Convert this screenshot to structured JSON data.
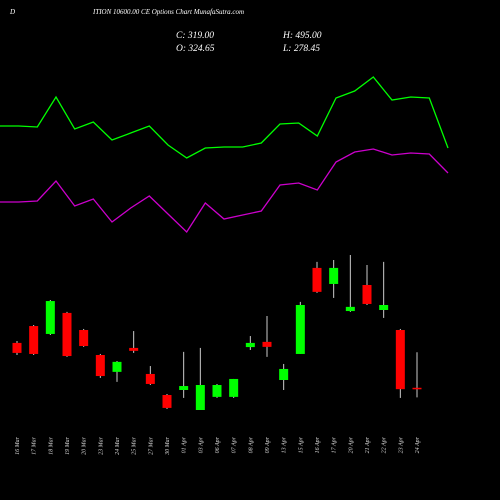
{
  "chart_data": [
    {
      "type": "line",
      "ylim": [
        0,
        190
      ],
      "series": [
        {
          "color": "#00ff00",
          "values": [
            124,
            124,
            123,
            153,
            121,
            128,
            110,
            117,
            124,
            105,
            92,
            102,
            103,
            103,
            107,
            126,
            127,
            114,
            152,
            159,
            173,
            150,
            153,
            152,
            102
          ]
        },
        {
          "color": "#cc00cc",
          "values": [
            48,
            48,
            49,
            69,
            44,
            51,
            28,
            42,
            54,
            36,
            18,
            47,
            31,
            35,
            39,
            65,
            67,
            60,
            88,
            98,
            101,
            95,
            97,
            96,
            77
          ]
        }
      ]
    },
    {
      "type": "candlestick",
      "title_prefix": "D",
      "title": "ITION 10600.00 CE Options Chart MunafaSutra.com",
      "ohlc_text": [
        "C: 319.00",
        "H: 495.00",
        "O: 324.65",
        "L: 278.45"
      ],
      "up_color": "#00ff00",
      "down_color": "#ff0000",
      "wick_color": "#cccccc",
      "ylim": [
        218,
        986
      ],
      "categories": [
        "16 Mar",
        "17 Mar",
        "18 Mar",
        "19 Mar",
        "20 Mar",
        "23 Mar",
        "24 Mar",
        "25 Mar",
        "27 Mar",
        "30 Mar",
        "01 Apr",
        "03 Apr",
        "06 Apr",
        "07 Apr",
        "08 Apr",
        "09 Apr",
        "13 Apr",
        "15 Apr",
        "16 Apr",
        "17 Apr",
        "20 Apr",
        "21 Apr",
        "22 Apr",
        "23 Apr",
        "24 Apr"
      ],
      "open": [
        540,
        621,
        583,
        684,
        602,
        482,
        401,
        516,
        391,
        290,
        314,
        218,
        281,
        281,
        520,
        545,
        362,
        487,
        900,
        823,
        693,
        818,
        698,
        602,
        324.65
      ],
      "high": [
        549,
        626,
        746,
        689,
        607,
        487,
        453,
        597,
        429,
        295,
        497,
        516,
        343,
        367,
        573,
        669,
        439,
        737,
        929,
        938,
        962,
        914,
        929,
        607,
        495
      ],
      "low": [
        482,
        482,
        578,
        473,
        521,
        372,
        353,
        492,
        338,
        223,
        276,
        218,
        276,
        276,
        506,
        473,
        314,
        487,
        780,
        756,
        689,
        722,
        660,
        276,
        278.45
      ],
      "close": [
        492,
        487,
        741,
        477,
        525,
        381,
        449,
        502,
        343,
        228,
        333,
        338,
        338,
        367,
        540,
        521,
        415,
        722,
        785,
        900,
        713,
        727,
        722,
        318,
        319
      ]
    }
  ]
}
